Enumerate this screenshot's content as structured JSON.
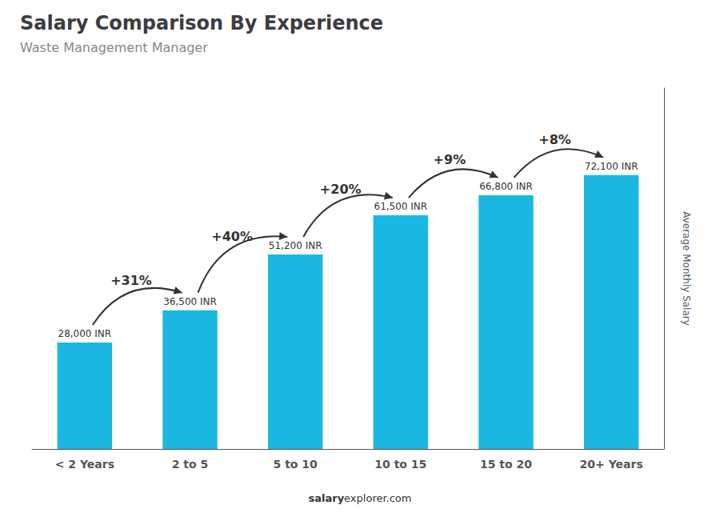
{
  "chart_data": {
    "type": "bar",
    "title": "Salary Comparison By Experience",
    "subtitle": "Waste Management Manager",
    "categories": [
      "< 2 Years",
      "2 to 5",
      "5 to 10",
      "10 to 15",
      "15 to 20",
      "20+ Years"
    ],
    "values": [
      28000,
      36500,
      51200,
      61500,
      66800,
      72100
    ],
    "value_labels": [
      "28,000 INR",
      "36,500 INR",
      "51,200 INR",
      "61,500 INR",
      "66,800 INR",
      "72,100 INR"
    ],
    "data_labels": true,
    "color": "#1ab8e0",
    "annotations": [
      "+31%",
      "+40%",
      "+20%",
      "+9%",
      "+8%"
    ],
    "ylabel": "Average Monthly Salary",
    "ylim": [
      0,
      95000
    ],
    "grid": false,
    "tick_labels": "x",
    "footer": [
      "salary",
      "explorer.com"
    ]
  }
}
